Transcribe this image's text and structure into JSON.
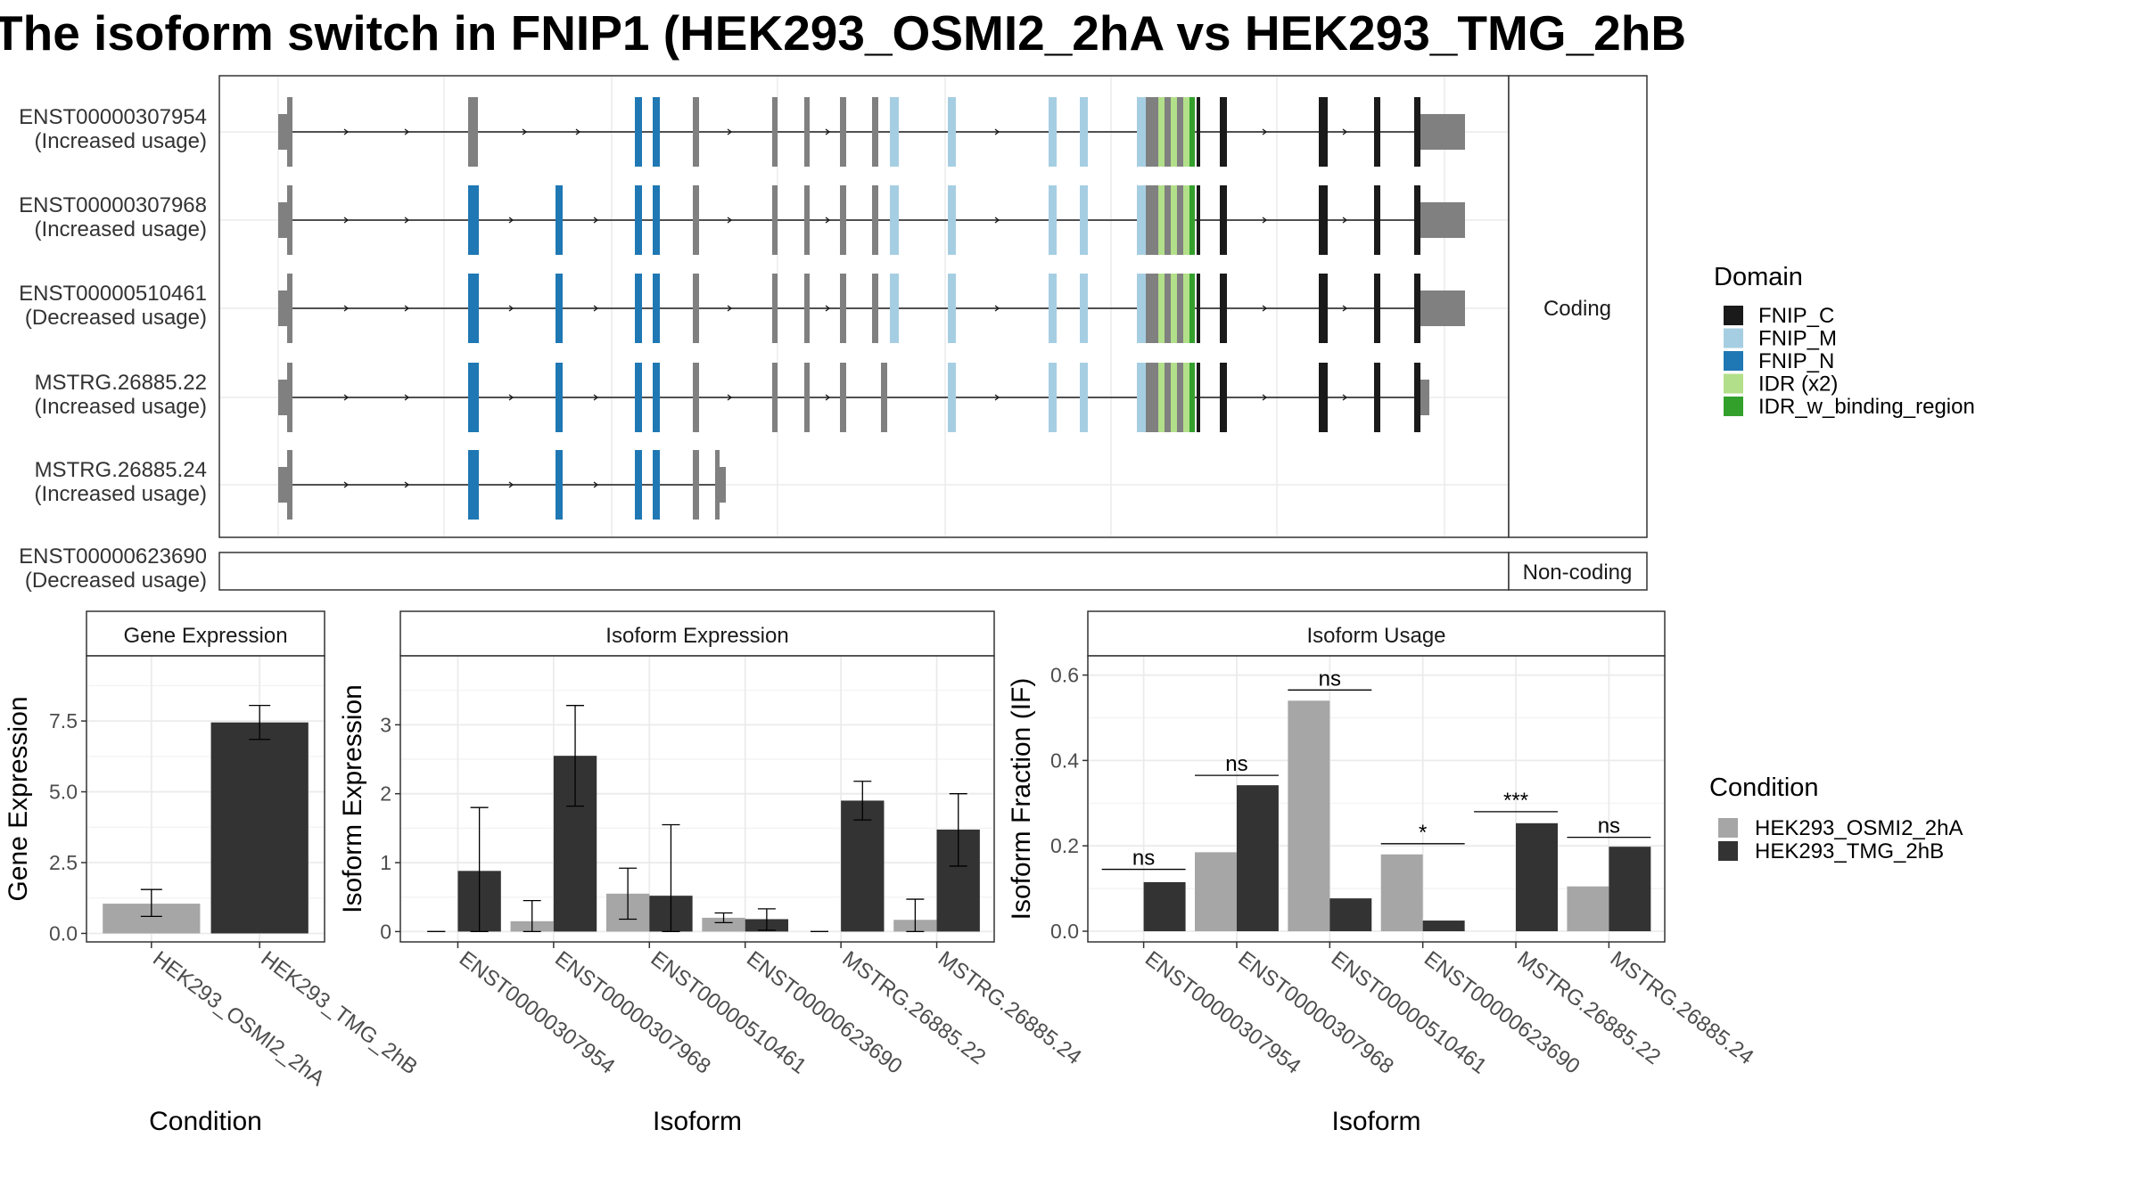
{
  "title": "The isoform switch in FNIP1 (HEK293_OSMI2_2hA vs HEK293_TMG_2hB",
  "transcript_panel": {
    "facets": [
      "Coding",
      "Non-coding"
    ],
    "transcripts": [
      {
        "id": "ENST00000307954",
        "usage": "(Increased usage)",
        "facet": "Coding"
      },
      {
        "id": "ENST00000307968",
        "usage": "(Increased usage)",
        "facet": "Coding"
      },
      {
        "id": "ENST00000510461",
        "usage": "(Decreased usage)",
        "facet": "Coding"
      },
      {
        "id": "MSTRG.26885.22",
        "usage": "(Increased usage)",
        "facet": "Coding"
      },
      {
        "id": "MSTRG.26885.24",
        "usage": "(Increased usage)",
        "facet": "Coding"
      },
      {
        "id": "ENST00000623690",
        "usage": "(Decreased usage)",
        "facet": "Non-coding"
      }
    ],
    "domain_legend": {
      "title": "Domain",
      "entries": [
        {
          "name": "FNIP_C",
          "color": "#1a1a1a"
        },
        {
          "name": "FNIP_M",
          "color": "#a6cee3"
        },
        {
          "name": "FNIP_N",
          "color": "#1f78b4"
        },
        {
          "name": "IDR (x2)",
          "color": "#b2df8a"
        },
        {
          "name": "IDR_w_binding_region",
          "color": "#33a02c"
        }
      ]
    }
  },
  "condition_legend": {
    "title": "Condition",
    "entries": [
      {
        "name": "HEK293_OSMI2_2hA",
        "color": "#a6a6a6"
      },
      {
        "name": "HEK293_TMG_2hB",
        "color": "#333333"
      }
    ]
  },
  "chart_data": [
    {
      "type": "bar",
      "title": "Gene Expression",
      "xlabel": "Condition",
      "ylabel": "Gene Expression",
      "categories": [
        "HEK293_OSMI2_2hA",
        "HEK293_TMG_2hB"
      ],
      "values": [
        1.05,
        7.45
      ],
      "errors": [
        [
          0.6,
          1.55
        ],
        [
          6.85,
          8.05
        ]
      ],
      "colors": [
        "#a6a6a6",
        "#333333"
      ],
      "ylim": [
        -0.3,
        9.8
      ],
      "yticks": [
        0.0,
        2.5,
        5.0,
        7.5
      ],
      "ytick_labels": [
        "0.0",
        "2.5",
        "5.0",
        "7.5"
      ]
    },
    {
      "type": "bar",
      "title": "Isoform Expression",
      "xlabel": "Isoform",
      "ylabel": "Isoform Expression",
      "categories": [
        "ENST00000307954",
        "ENST00000307968",
        "ENST00000510461",
        "ENST00000623690",
        "MSTRG.26885.22",
        "MSTRG.26885.24"
      ],
      "series": [
        {
          "name": "HEK293_OSMI2_2hA",
          "values": [
            0.0,
            0.15,
            0.55,
            0.2,
            0.0,
            0.17
          ],
          "errors": [
            [
              0.0,
              0.0
            ],
            [
              0.0,
              0.45
            ],
            [
              0.18,
              0.92
            ],
            [
              0.13,
              0.27
            ],
            [
              0.0,
              0.0
            ],
            [
              0.0,
              0.47
            ]
          ]
        },
        {
          "name": "HEK293_TMG_2hB",
          "values": [
            0.88,
            2.55,
            0.52,
            0.18,
            1.9,
            1.48
          ],
          "errors": [
            [
              0.0,
              1.8
            ],
            [
              1.82,
              3.28
            ],
            [
              0.0,
              1.55
            ],
            [
              0.02,
              0.33
            ],
            [
              1.62,
              2.18
            ],
            [
              0.95,
              2.0
            ]
          ]
        }
      ],
      "ylim": [
        -0.15,
        4.0
      ],
      "yticks": [
        0,
        1,
        2,
        3
      ],
      "ytick_labels": [
        "0",
        "1",
        "2",
        "3"
      ]
    },
    {
      "type": "bar",
      "title": "Isoform Usage",
      "xlabel": "Isoform",
      "ylabel": "Isoform Fraction (IF)",
      "categories": [
        "ENST00000307954",
        "ENST00000307968",
        "ENST00000510461",
        "ENST00000623690",
        "MSTRG.26885.22",
        "MSTRG.26885.24"
      ],
      "series": [
        {
          "name": "HEK293_OSMI2_2hA",
          "values": [
            0.0,
            0.185,
            0.54,
            0.18,
            0.0,
            0.105
          ]
        },
        {
          "name": "HEK293_TMG_2hB",
          "values": [
            0.115,
            0.342,
            0.077,
            0.025,
            0.253,
            0.198
          ]
        }
      ],
      "significance": [
        "ns",
        "ns",
        "ns",
        "*",
        "***",
        "ns"
      ],
      "significance_y": [
        0.145,
        0.365,
        0.565,
        0.205,
        0.28,
        0.22
      ],
      "ylim": [
        -0.025,
        0.645
      ],
      "yticks": [
        0.0,
        0.2,
        0.4,
        0.6
      ],
      "ytick_labels": [
        "0.0",
        "0.2",
        "0.4",
        "0.6"
      ]
    }
  ]
}
